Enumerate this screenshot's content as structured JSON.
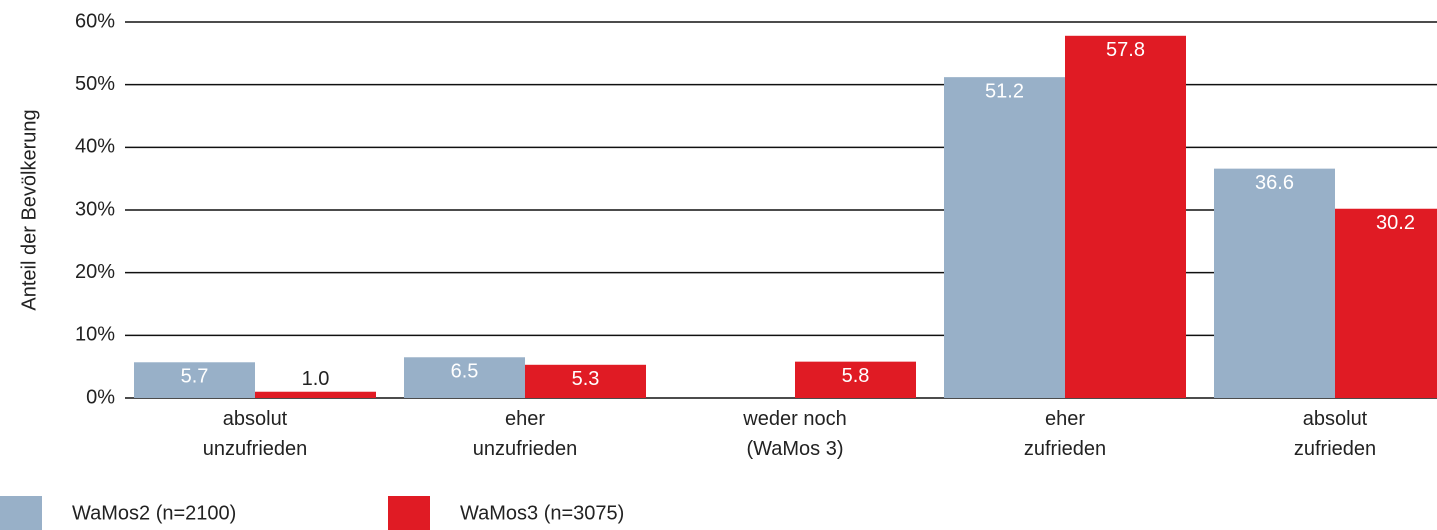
{
  "chart_data": {
    "type": "bar",
    "y_label": "Anteil der Bevölkerung",
    "categories": [
      "absolut\nunzufrieden",
      "eher\nunzufrieden",
      "weder noch\n(WaMos 3)",
      "eher\nzufrieden",
      "absolut\nzufrieden"
    ],
    "series": [
      {
        "name": "WaMos2 (n=2100)",
        "color": "#98b0c8",
        "values": [
          5.7,
          6.5,
          null,
          51.2,
          36.6
        ]
      },
      {
        "name": "WaMos3 (n=3075)",
        "color": "#e01b24",
        "values": [
          1.0,
          5.3,
          5.8,
          57.8,
          30.2
        ],
        "value_labels": [
          "1.0",
          "5.3",
          "5.8",
          "57.8",
          "30.2"
        ]
      }
    ],
    "ylim": [
      0,
      60
    ],
    "yticks": [
      {
        "value": 0,
        "label": "0%"
      },
      {
        "value": 10,
        "label": "10%"
      },
      {
        "value": 20,
        "label": "20%"
      },
      {
        "value": 30,
        "label": "30%"
      },
      {
        "value": 40,
        "label": "40%"
      },
      {
        "value": 50,
        "label": "50%"
      },
      {
        "value": 60,
        "label": "60%"
      }
    ],
    "grid": true
  }
}
